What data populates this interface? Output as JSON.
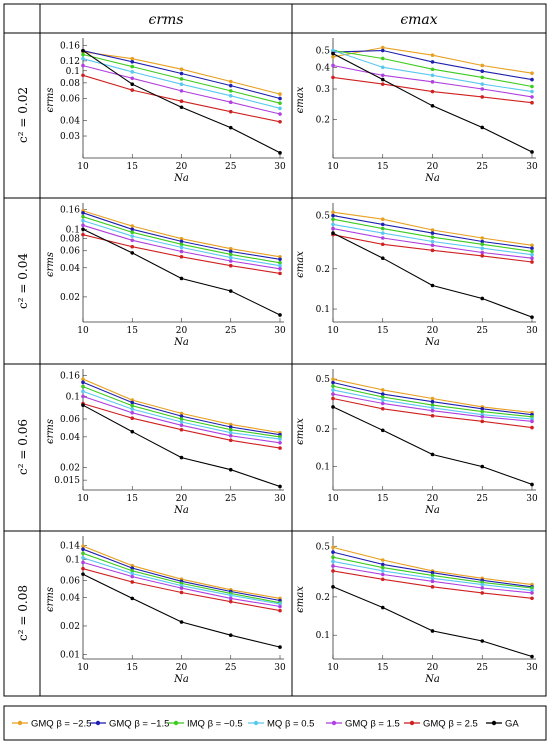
{
  "headers": {
    "col1": "ϵrms",
    "col2": "ϵmax",
    "rows": [
      "c² = 0.02",
      "c² = 0.04",
      "c² = 0.06",
      "c² = 0.08"
    ]
  },
  "legend": [
    {
      "name": "GMQ β = −2.5",
      "color": "#E8A020"
    },
    {
      "name": "GMQ β = −1.5",
      "color": "#1F1FB0"
    },
    {
      "name": "IMQ β = −0.5",
      "color": "#3CCB1E"
    },
    {
      "name": "MQ β = 0.5",
      "color": "#5AC8F0"
    },
    {
      "name": "GMQ β = 1.5",
      "color": "#B040E0"
    },
    {
      "name": "GMQ β = 2.5",
      "color": "#D02020"
    },
    {
      "name": "GA",
      "color": "#000000"
    }
  ],
  "chart_data": [
    {
      "type": "line",
      "scale": "log",
      "xlabel": "Na",
      "ylabel": "ϵrms",
      "x": [
        10,
        15,
        20,
        25,
        30
      ],
      "ylim": [
        0.02,
        0.17
      ],
      "yticks": [
        0.03,
        0.04,
        0.06,
        0.08,
        0.1,
        0.12,
        0.16
      ],
      "ytick_labels": [
        "0.03",
        "0.04",
        "0.06",
        "0.08",
        "0.1",
        "0.12",
        "0.16"
      ],
      "series": [
        {
          "values": [
            0.142,
            0.125,
            0.103,
            0.082,
            0.065
          ]
        },
        {
          "values": [
            0.145,
            0.118,
            0.095,
            0.076,
            0.06
          ]
        },
        {
          "values": [
            0.135,
            0.108,
            0.086,
            0.069,
            0.055
          ]
        },
        {
          "values": [
            0.125,
            0.098,
            0.078,
            0.063,
            0.05
          ]
        },
        {
          "values": [
            0.11,
            0.087,
            0.069,
            0.056,
            0.045
          ]
        },
        {
          "values": [
            0.092,
            0.07,
            0.057,
            0.047,
            0.039
          ]
        },
        {
          "values": [
            0.145,
            0.078,
            0.051,
            0.035,
            0.022
          ]
        }
      ]
    },
    {
      "type": "line",
      "scale": "log",
      "xlabel": "Na",
      "ylabel": "ϵmax",
      "x": [
        10,
        15,
        20,
        25,
        30
      ],
      "ylim": [
        0.12,
        0.56
      ],
      "yticks": [
        0.2,
        0.3,
        0.4,
        0.5
      ],
      "ytick_labels": [
        "0.2",
        "0.3",
        "0.4",
        "0.5"
      ],
      "series": [
        {
          "values": [
            0.46,
            0.52,
            0.47,
            0.41,
            0.37
          ]
        },
        {
          "values": [
            0.49,
            0.5,
            0.43,
            0.38,
            0.34
          ]
        },
        {
          "values": [
            0.5,
            0.45,
            0.39,
            0.35,
            0.31
          ]
        },
        {
          "values": [
            0.5,
            0.4,
            0.36,
            0.32,
            0.29
          ]
        },
        {
          "values": [
            0.41,
            0.36,
            0.33,
            0.3,
            0.27
          ]
        },
        {
          "values": [
            0.35,
            0.32,
            0.29,
            0.27,
            0.25
          ]
        },
        {
          "values": [
            0.48,
            0.34,
            0.24,
            0.18,
            0.13
          ]
        }
      ]
    },
    {
      "type": "line",
      "scale": "log",
      "xlabel": "Na",
      "ylabel": "ϵrms",
      "x": [
        10,
        15,
        20,
        25,
        30
      ],
      "ylim": [
        0.011,
        0.17
      ],
      "yticks": [
        0.02,
        0.04,
        0.06,
        0.08,
        0.1,
        0.16
      ],
      "ytick_labels": [
        "0.02",
        "0.04",
        "0.06",
        "0.08",
        "0.1",
        "0.16"
      ],
      "series": [
        {
          "values": [
            0.155,
            0.108,
            0.08,
            0.063,
            0.052
          ]
        },
        {
          "values": [
            0.148,
            0.1,
            0.075,
            0.059,
            0.049
          ]
        },
        {
          "values": [
            0.135,
            0.093,
            0.07,
            0.055,
            0.045
          ]
        },
        {
          "values": [
            0.123,
            0.085,
            0.065,
            0.051,
            0.042
          ]
        },
        {
          "values": [
            0.11,
            0.077,
            0.059,
            0.047,
            0.039
          ]
        },
        {
          "values": [
            0.088,
            0.066,
            0.052,
            0.042,
            0.035
          ]
        },
        {
          "values": [
            0.1,
            0.057,
            0.031,
            0.023,
            0.013
          ]
        }
      ]
    },
    {
      "type": "line",
      "scale": "log",
      "xlabel": "Na",
      "ylabel": "ϵmax",
      "x": [
        10,
        15,
        20,
        25,
        30
      ],
      "ylim": [
        0.08,
        0.58
      ],
      "yticks": [
        0.1,
        0.2,
        0.5
      ],
      "ytick_labels": [
        "0.1",
        "0.2",
        "0.5"
      ],
      "series": [
        {
          "values": [
            0.53,
            0.47,
            0.39,
            0.34,
            0.3
          ]
        },
        {
          "values": [
            0.5,
            0.43,
            0.37,
            0.32,
            0.285
          ]
        },
        {
          "values": [
            0.47,
            0.4,
            0.345,
            0.305,
            0.27
          ]
        },
        {
          "values": [
            0.43,
            0.37,
            0.32,
            0.285,
            0.255
          ]
        },
        {
          "values": [
            0.4,
            0.34,
            0.3,
            0.265,
            0.24
          ]
        },
        {
          "values": [
            0.36,
            0.305,
            0.275,
            0.25,
            0.225
          ]
        },
        {
          "values": [
            0.37,
            0.24,
            0.15,
            0.12,
            0.087
          ]
        }
      ]
    },
    {
      "type": "line",
      "scale": "log",
      "xlabel": "Na",
      "ylabel": "ϵrms",
      "x": [
        10,
        15,
        20,
        25,
        30
      ],
      "ylim": [
        0.012,
        0.17
      ],
      "yticks": [
        0.015,
        0.02,
        0.04,
        0.06,
        0.1,
        0.16
      ],
      "ytick_labels": [
        "0.015",
        "0.02",
        "0.04",
        "0.06",
        "0.1",
        "0.16"
      ],
      "series": [
        {
          "values": [
            0.148,
            0.092,
            0.068,
            0.053,
            0.044
          ]
        },
        {
          "values": [
            0.138,
            0.087,
            0.064,
            0.05,
            0.042
          ]
        },
        {
          "values": [
            0.125,
            0.081,
            0.06,
            0.047,
            0.04
          ]
        },
        {
          "values": [
            0.112,
            0.075,
            0.056,
            0.044,
            0.038
          ]
        },
        {
          "values": [
            0.1,
            0.069,
            0.052,
            0.041,
            0.035
          ]
        },
        {
          "values": [
            0.085,
            0.061,
            0.047,
            0.037,
            0.031
          ]
        },
        {
          "values": [
            0.082,
            0.045,
            0.025,
            0.019,
            0.013
          ]
        }
      ]
    },
    {
      "type": "line",
      "scale": "log",
      "xlabel": "Na",
      "ylabel": "ϵmax",
      "x": [
        10,
        15,
        20,
        25,
        30
      ],
      "ylim": [
        0.065,
        0.56
      ],
      "yticks": [
        0.1,
        0.2,
        0.5
      ],
      "ytick_labels": [
        "0.1",
        "0.2",
        "0.5"
      ],
      "series": [
        {
          "values": [
            0.5,
            0.41,
            0.35,
            0.3,
            0.27
          ]
        },
        {
          "values": [
            0.47,
            0.38,
            0.33,
            0.29,
            0.26
          ]
        },
        {
          "values": [
            0.44,
            0.36,
            0.31,
            0.275,
            0.25
          ]
        },
        {
          "values": [
            0.41,
            0.34,
            0.295,
            0.26,
            0.24
          ]
        },
        {
          "values": [
            0.38,
            0.32,
            0.28,
            0.25,
            0.23
          ]
        },
        {
          "values": [
            0.35,
            0.29,
            0.255,
            0.23,
            0.205
          ]
        },
        {
          "values": [
            0.3,
            0.195,
            0.125,
            0.1,
            0.072
          ]
        }
      ]
    },
    {
      "type": "line",
      "scale": "log",
      "xlabel": "Na",
      "ylabel": "ϵrms",
      "x": [
        10,
        15,
        20,
        25,
        30
      ],
      "ylim": [
        0.009,
        0.16
      ],
      "yticks": [
        0.01,
        0.02,
        0.04,
        0.06,
        0.1,
        0.14
      ],
      "ytick_labels": [
        "0.01",
        "0.02",
        "0.04",
        "0.06",
        "0.1",
        "0.14"
      ],
      "series": [
        {
          "values": [
            0.138,
            0.086,
            0.062,
            0.048,
            0.039
          ]
        },
        {
          "values": [
            0.128,
            0.081,
            0.059,
            0.046,
            0.037
          ]
        },
        {
          "values": [
            0.116,
            0.076,
            0.056,
            0.044,
            0.035
          ]
        },
        {
          "values": [
            0.104,
            0.071,
            0.053,
            0.042,
            0.034
          ]
        },
        {
          "values": [
            0.093,
            0.066,
            0.05,
            0.039,
            0.032
          ]
        },
        {
          "values": [
            0.08,
            0.058,
            0.045,
            0.036,
            0.029
          ]
        },
        {
          "values": [
            0.07,
            0.039,
            0.022,
            0.016,
            0.012
          ]
        }
      ]
    },
    {
      "type": "line",
      "scale": "log",
      "xlabel": "Na",
      "ylabel": "ϵmax",
      "x": [
        10,
        15,
        20,
        25,
        30
      ],
      "ylim": [
        0.065,
        0.56
      ],
      "yticks": [
        0.1,
        0.2,
        0.5
      ],
      "ytick_labels": [
        "0.1",
        "0.2",
        "0.5"
      ],
      "series": [
        {
          "values": [
            0.49,
            0.39,
            0.32,
            0.28,
            0.25
          ]
        },
        {
          "values": [
            0.45,
            0.36,
            0.31,
            0.27,
            0.24
          ]
        },
        {
          "values": [
            0.41,
            0.34,
            0.295,
            0.26,
            0.235
          ]
        },
        {
          "values": [
            0.38,
            0.32,
            0.28,
            0.25,
            0.225
          ]
        },
        {
          "values": [
            0.35,
            0.3,
            0.265,
            0.235,
            0.215
          ]
        },
        {
          "values": [
            0.32,
            0.275,
            0.24,
            0.215,
            0.195
          ]
        },
        {
          "values": [
            0.24,
            0.165,
            0.108,
            0.09,
            0.068
          ]
        }
      ]
    }
  ]
}
